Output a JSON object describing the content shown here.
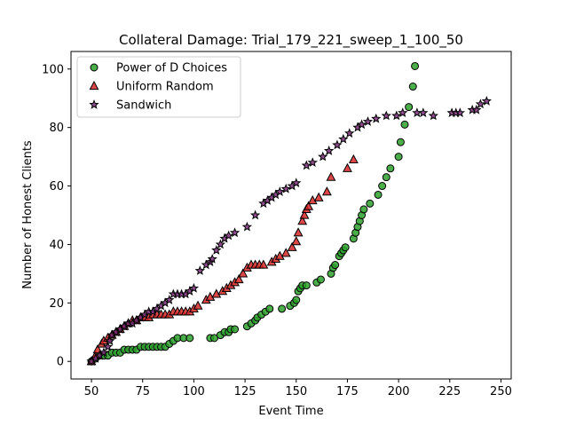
{
  "chart_data": {
    "type": "scatter",
    "title": "Collateral Damage: Trial_179_221_sweep_1_100_50",
    "xlabel": "Event Time",
    "ylabel": "Number of Honest Clients",
    "xlim": [
      40,
      255
    ],
    "ylim": [
      -6,
      106
    ],
    "xticks": [
      50,
      75,
      100,
      125,
      150,
      175,
      200,
      225,
      250
    ],
    "yticks": [
      0,
      20,
      40,
      60,
      80,
      100
    ],
    "grid": false,
    "legend_position": "top-left",
    "series": [
      {
        "name": "Power of D Choices",
        "marker": "circle",
        "color": "#2ca02c",
        "points": [
          [
            50,
            0
          ],
          [
            52,
            1
          ],
          [
            54,
            2
          ],
          [
            56,
            2
          ],
          [
            58,
            2
          ],
          [
            60,
            3
          ],
          [
            62,
            3
          ],
          [
            64,
            3
          ],
          [
            66,
            4
          ],
          [
            68,
            4
          ],
          [
            70,
            4
          ],
          [
            72,
            4
          ],
          [
            74,
            5
          ],
          [
            76,
            5
          ],
          [
            78,
            5
          ],
          [
            80,
            5
          ],
          [
            82,
            5
          ],
          [
            84,
            5
          ],
          [
            86,
            5
          ],
          [
            88,
            6
          ],
          [
            90,
            7
          ],
          [
            92,
            8
          ],
          [
            95,
            8
          ],
          [
            98,
            8
          ],
          [
            108,
            8
          ],
          [
            110,
            8
          ],
          [
            113,
            9
          ],
          [
            115,
            10
          ],
          [
            117,
            10
          ],
          [
            118,
            11
          ],
          [
            120,
            11
          ],
          [
            126,
            12
          ],
          [
            128,
            13
          ],
          [
            130,
            14
          ],
          [
            131,
            15
          ],
          [
            133,
            16
          ],
          [
            135,
            17
          ],
          [
            137,
            18
          ],
          [
            143,
            18
          ],
          [
            147,
            19
          ],
          [
            149,
            20
          ],
          [
            150,
            21
          ],
          [
            151,
            24
          ],
          [
            152,
            25
          ],
          [
            153,
            26
          ],
          [
            155,
            26
          ],
          [
            160,
            27
          ],
          [
            162,
            28
          ],
          [
            167,
            30
          ],
          [
            168,
            32
          ],
          [
            169,
            33
          ],
          [
            171,
            36
          ],
          [
            172,
            37
          ],
          [
            173,
            38
          ],
          [
            174,
            39
          ],
          [
            178,
            42
          ],
          [
            179,
            44
          ],
          [
            180,
            46
          ],
          [
            181,
            48
          ],
          [
            182,
            50
          ],
          [
            183,
            52
          ],
          [
            186,
            54
          ],
          [
            190,
            57
          ],
          [
            192,
            60
          ],
          [
            194,
            63
          ],
          [
            196,
            66
          ],
          [
            200,
            70
          ],
          [
            201,
            75
          ],
          [
            203,
            81
          ],
          [
            205,
            87
          ],
          [
            207,
            94
          ],
          [
            208,
            101
          ]
        ]
      },
      {
        "name": "Uniform Random",
        "marker": "triangle",
        "color": "#d62728",
        "points": [
          [
            50,
            0
          ],
          [
            52,
            2
          ],
          [
            53,
            4
          ],
          [
            55,
            6
          ],
          [
            56,
            7
          ],
          [
            58,
            8
          ],
          [
            60,
            9
          ],
          [
            62,
            10
          ],
          [
            64,
            11
          ],
          [
            66,
            12
          ],
          [
            68,
            13
          ],
          [
            70,
            14
          ],
          [
            72,
            14
          ],
          [
            74,
            15
          ],
          [
            76,
            15
          ],
          [
            78,
            15
          ],
          [
            80,
            16
          ],
          [
            82,
            16
          ],
          [
            84,
            16
          ],
          [
            86,
            16
          ],
          [
            88,
            16
          ],
          [
            90,
            17
          ],
          [
            92,
            17
          ],
          [
            94,
            17
          ],
          [
            96,
            17
          ],
          [
            98,
            17
          ],
          [
            100,
            18
          ],
          [
            102,
            19
          ],
          [
            106,
            21
          ],
          [
            108,
            22
          ],
          [
            111,
            23
          ],
          [
            114,
            24
          ],
          [
            116,
            25
          ],
          [
            118,
            26
          ],
          [
            120,
            27
          ],
          [
            122,
            28
          ],
          [
            124,
            30
          ],
          [
            126,
            32
          ],
          [
            128,
            33
          ],
          [
            130,
            33
          ],
          [
            132,
            33
          ],
          [
            134,
            33
          ],
          [
            138,
            34
          ],
          [
            140,
            35
          ],
          [
            142,
            36
          ],
          [
            145,
            37
          ],
          [
            148,
            39
          ],
          [
            150,
            41
          ],
          [
            151,
            44
          ],
          [
            153,
            48
          ],
          [
            154,
            50
          ],
          [
            155,
            52
          ],
          [
            156,
            53
          ],
          [
            158,
            55
          ],
          [
            161,
            56
          ],
          [
            165,
            58
          ],
          [
            167,
            63
          ],
          [
            175,
            66
          ],
          [
            178,
            69
          ]
        ]
      },
      {
        "name": "Sandwich",
        "marker": "star",
        "color": "#7b2e7a",
        "points": [
          [
            50,
            0
          ],
          [
            52,
            1
          ],
          [
            54,
            2
          ],
          [
            56,
            3
          ],
          [
            58,
            5
          ],
          [
            59,
            7
          ],
          [
            60,
            9
          ],
          [
            62,
            10
          ],
          [
            64,
            11
          ],
          [
            66,
            12
          ],
          [
            68,
            13
          ],
          [
            70,
            13
          ],
          [
            72,
            14
          ],
          [
            74,
            15
          ],
          [
            76,
            16
          ],
          [
            78,
            17
          ],
          [
            80,
            17
          ],
          [
            82,
            18
          ],
          [
            84,
            19
          ],
          [
            86,
            20
          ],
          [
            88,
            21
          ],
          [
            90,
            23
          ],
          [
            92,
            23
          ],
          [
            94,
            23
          ],
          [
            96,
            23
          ],
          [
            98,
            24
          ],
          [
            100,
            25
          ],
          [
            103,
            31
          ],
          [
            106,
            33
          ],
          [
            108,
            34
          ],
          [
            109,
            35
          ],
          [
            111,
            38
          ],
          [
            113,
            40
          ],
          [
            115,
            42
          ],
          [
            117,
            43
          ],
          [
            120,
            44
          ],
          [
            126,
            46
          ],
          [
            130,
            50
          ],
          [
            134,
            54
          ],
          [
            136,
            55
          ],
          [
            138,
            56
          ],
          [
            140,
            57
          ],
          [
            142,
            58
          ],
          [
            145,
            59
          ],
          [
            148,
            60
          ],
          [
            150,
            61
          ],
          [
            155,
            67
          ],
          [
            158,
            68
          ],
          [
            163,
            70
          ],
          [
            166,
            72
          ],
          [
            170,
            74
          ],
          [
            173,
            76
          ],
          [
            176,
            78
          ],
          [
            180,
            80
          ],
          [
            182,
            81
          ],
          [
            185,
            82
          ],
          [
            189,
            83
          ],
          [
            194,
            84
          ],
          [
            199,
            84
          ],
          [
            202,
            85
          ],
          [
            209,
            85
          ],
          [
            212,
            85
          ],
          [
            217,
            84
          ],
          [
            226,
            85
          ],
          [
            228,
            85
          ],
          [
            230,
            85
          ],
          [
            236,
            86
          ],
          [
            238,
            86
          ],
          [
            240,
            88
          ],
          [
            243,
            89
          ]
        ]
      }
    ]
  }
}
